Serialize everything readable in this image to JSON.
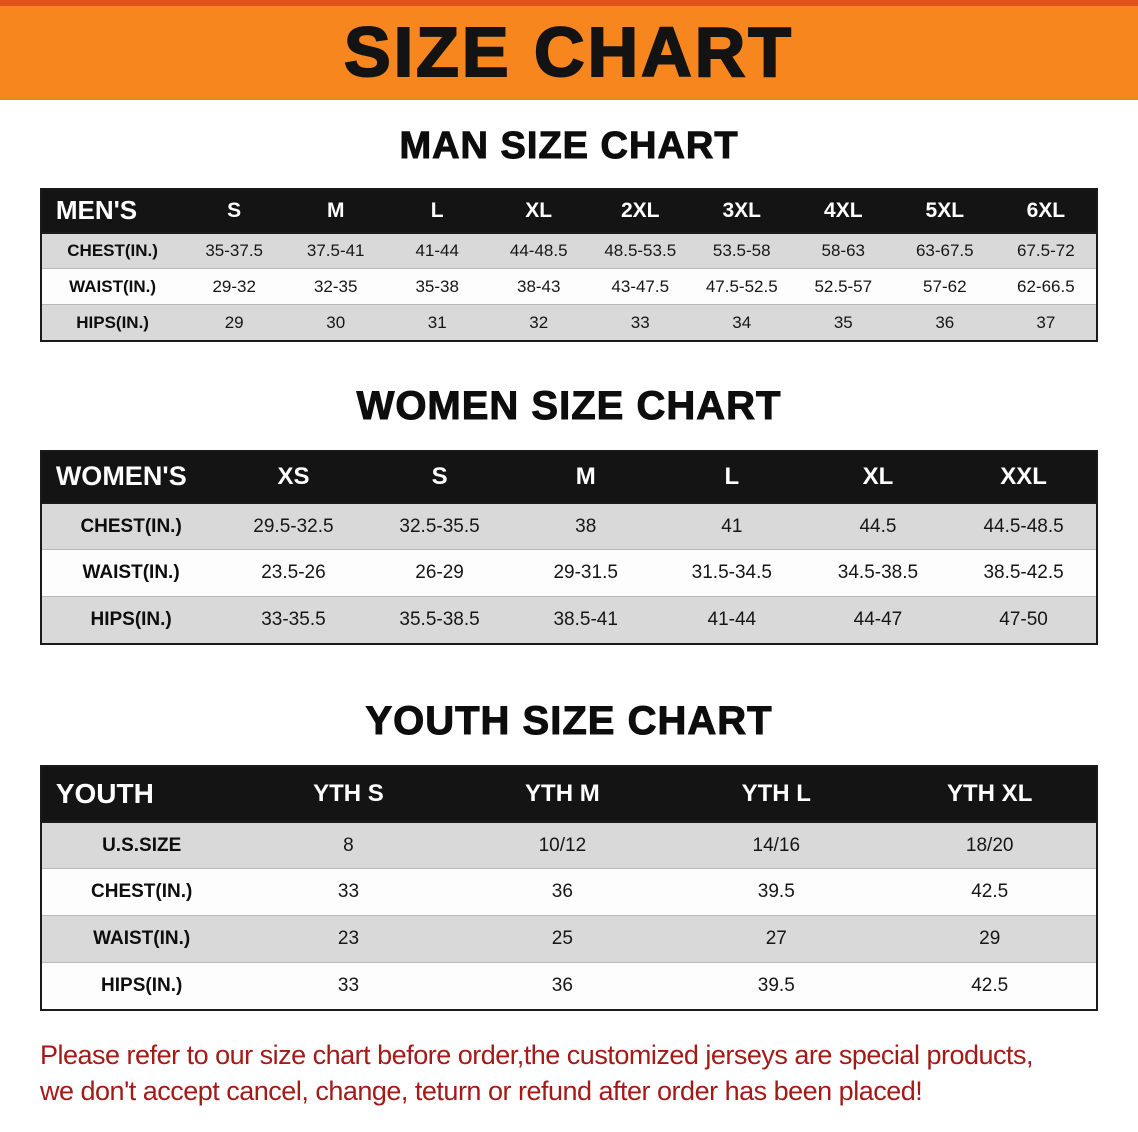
{
  "banner": {
    "title": "SIZE CHART"
  },
  "sections": [
    {
      "id": "men",
      "heading": "MAN SIZE CHART",
      "table": {
        "header": [
          "MEN'S",
          "S",
          "M",
          "L",
          "XL",
          "2XL",
          "3XL",
          "4XL",
          "5XL",
          "6XL"
        ],
        "rows": [
          [
            "CHEST(IN.)",
            "35-37.5",
            "37.5-41",
            "41-44",
            "44-48.5",
            "48.5-53.5",
            "53.5-58",
            "58-63",
            "63-67.5",
            "67.5-72"
          ],
          [
            "WAIST(IN.)",
            "29-32",
            "32-35",
            "35-38",
            "38-43",
            "43-47.5",
            "47.5-52.5",
            "52.5-57",
            "57-62",
            "62-66.5"
          ],
          [
            "HIPS(IN.)",
            "29",
            "30",
            "31",
            "32",
            "33",
            "34",
            "35",
            "36",
            "37"
          ]
        ]
      }
    },
    {
      "id": "women",
      "heading": "WOMEN SIZE CHART",
      "table": {
        "header": [
          "WOMEN'S",
          "XS",
          "S",
          "M",
          "L",
          "XL",
          "XXL"
        ],
        "rows": [
          [
            "CHEST(IN.)",
            "29.5-32.5",
            "32.5-35.5",
            "38",
            "41",
            "44.5",
            "44.5-48.5"
          ],
          [
            "WAIST(IN.)",
            "23.5-26",
            "26-29",
            "29-31.5",
            "31.5-34.5",
            "34.5-38.5",
            "38.5-42.5"
          ],
          [
            "HIPS(IN.)",
            "33-35.5",
            "35.5-38.5",
            "38.5-41",
            "41-44",
            "44-47",
            "47-50"
          ]
        ]
      }
    },
    {
      "id": "youth",
      "heading": "YOUTH SIZE CHART",
      "table": {
        "header": [
          "YOUTH",
          "YTH S",
          "YTH M",
          "YTH L",
          "YTH XL"
        ],
        "rows": [
          [
            "U.S.SIZE",
            "8",
            "10/12",
            "14/16",
            "18/20"
          ],
          [
            "CHEST(IN.)",
            "33",
            "36",
            "39.5",
            "42.5"
          ],
          [
            "WAIST(IN.)",
            "23",
            "25",
            "27",
            "29"
          ],
          [
            "HIPS(IN.)",
            "33",
            "36",
            "39.5",
            "42.5"
          ]
        ]
      }
    }
  ],
  "disclaimer": {
    "line1": "Please refer to our size chart before order,the customized jerseys are special products,",
    "line2": "we don't accept cancel, change, teturn or refund after order has been placed!"
  },
  "colors": {
    "banner_bg": "#F6861D",
    "banner_edge": "#E0541C",
    "header_bg": "#141414",
    "header_text": "#FFFFFF",
    "row_gray": "#D9D9D9",
    "disclaimer_red": "#A31A17"
  }
}
